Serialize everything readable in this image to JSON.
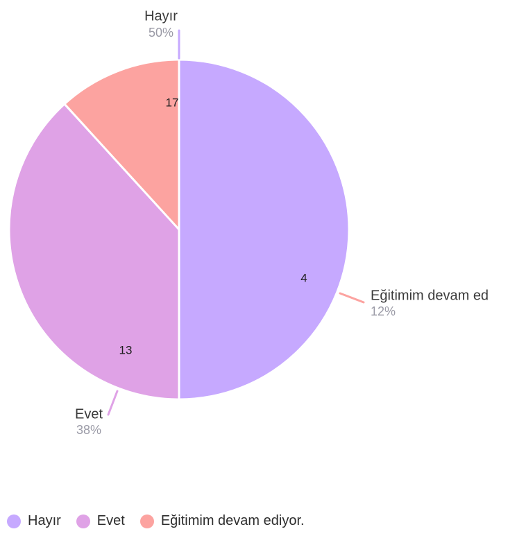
{
  "chart_data": {
    "type": "pie",
    "slices": [
      {
        "label": "Hayır",
        "callout_label": "Hayır",
        "value": 17,
        "percent_label": "50%",
        "color": "#c6a9ff"
      },
      {
        "label": "Evet",
        "callout_label": "Evet",
        "value": 13,
        "percent_label": "38%",
        "color": "#dfa2e6"
      },
      {
        "label": "Eğitimim devam ediyor.",
        "callout_label": "Eğitimim devam ed",
        "value": 4,
        "percent_label": "12%",
        "color": "#fca3a0"
      }
    ],
    "legend_position": "bottom-left"
  }
}
